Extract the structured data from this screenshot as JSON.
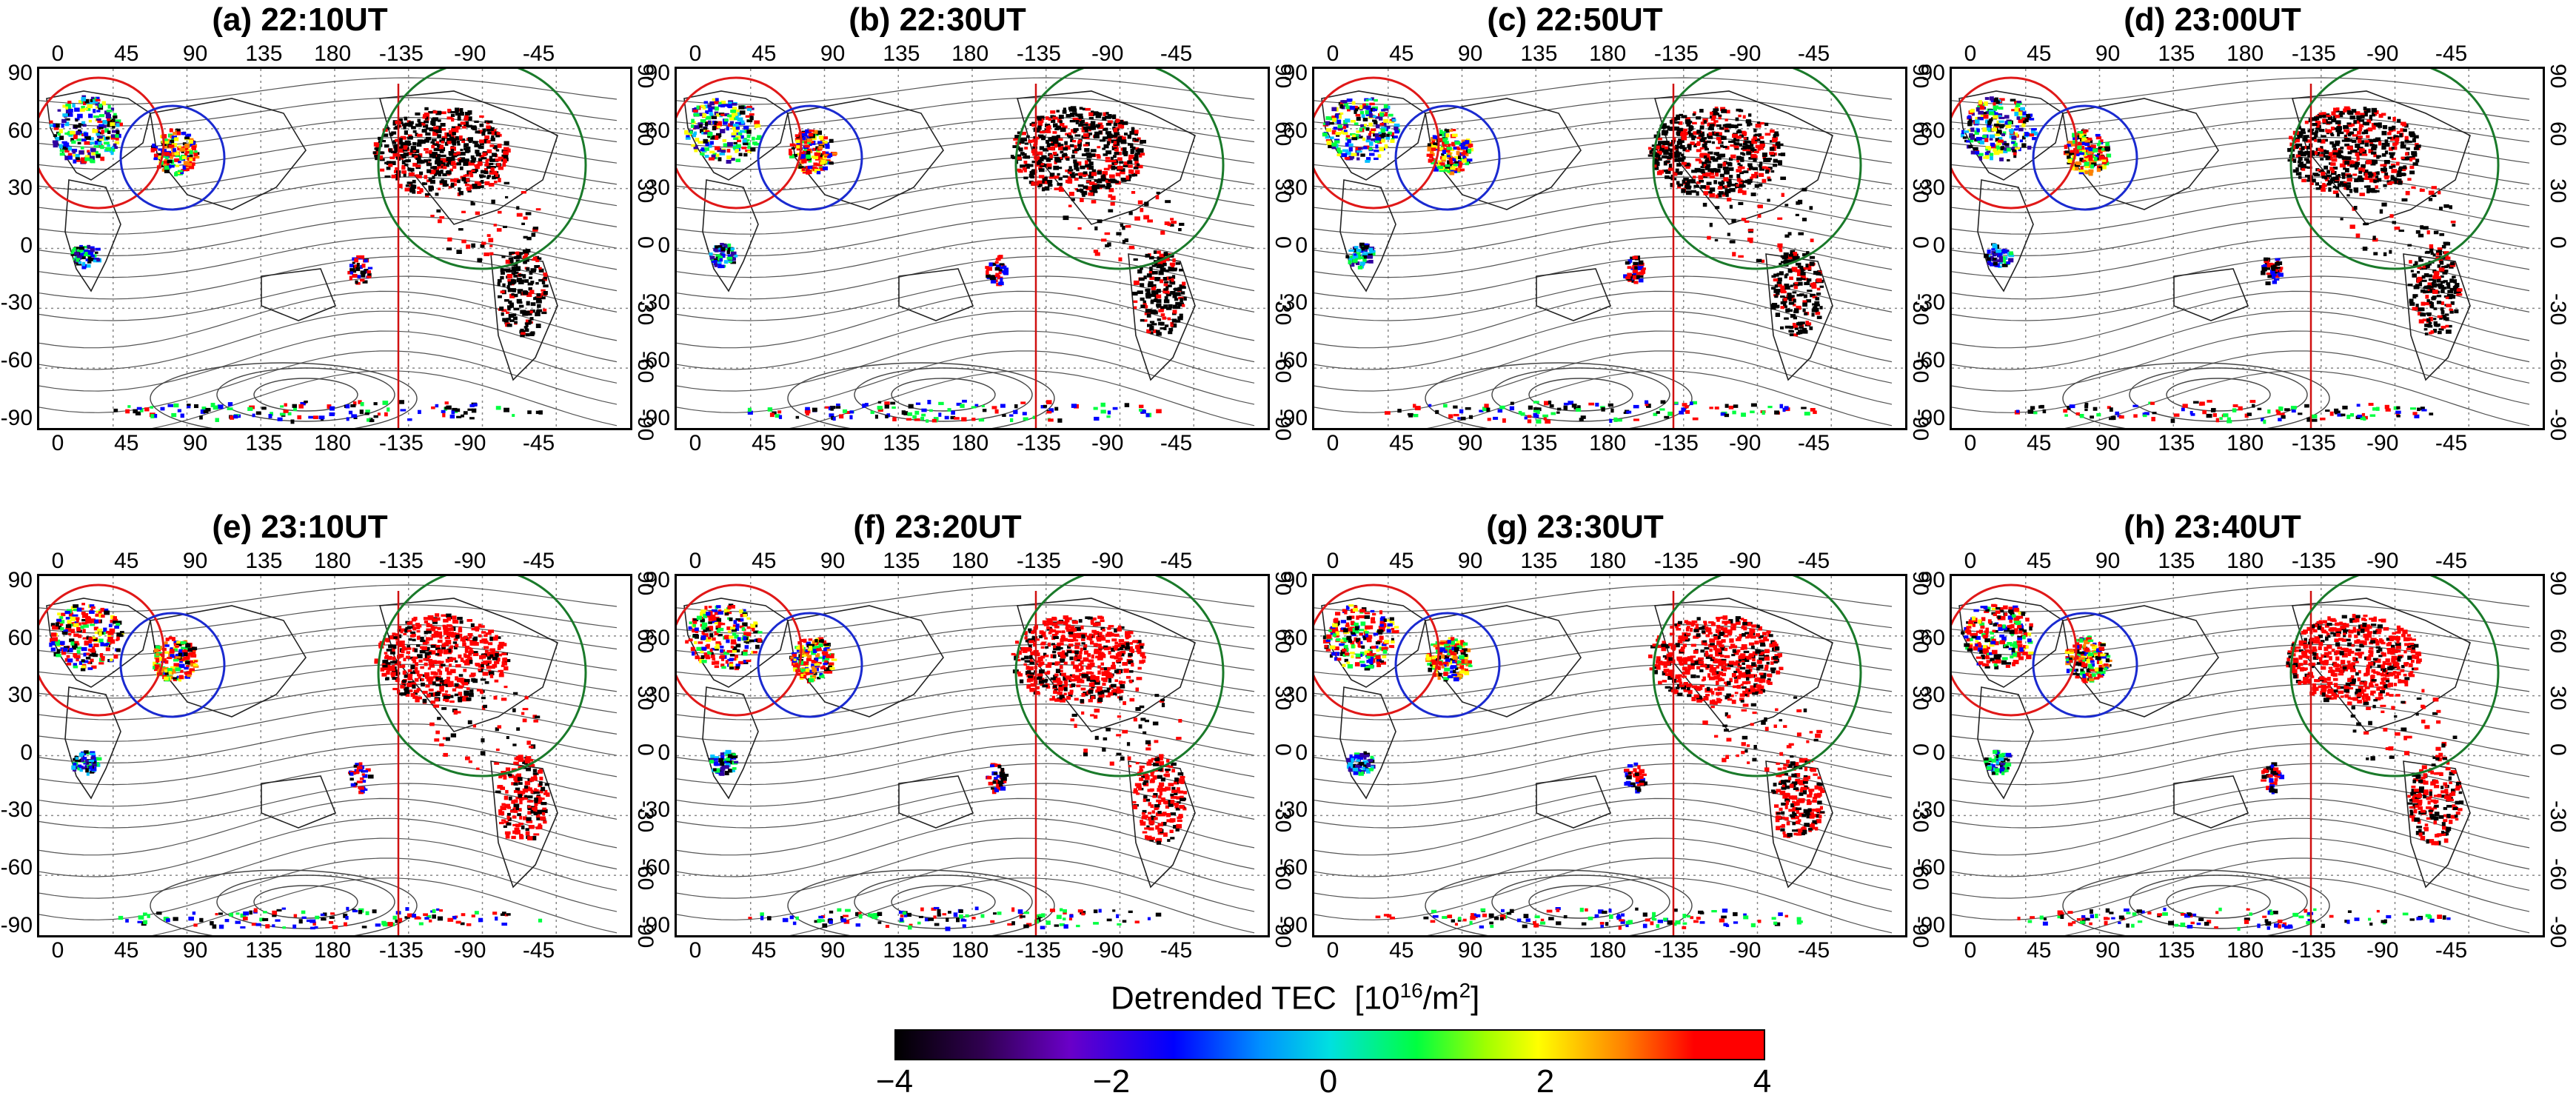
{
  "panels": [
    {
      "title": "(a) 22:10UT"
    },
    {
      "title": "(b) 22:30UT"
    },
    {
      "title": "(c) 22:50UT"
    },
    {
      "title": "(d) 23:00UT"
    },
    {
      "title": "(e) 23:10UT"
    },
    {
      "title": "(f) 23:20UT"
    },
    {
      "title": "(g) 23:30UT"
    },
    {
      "title": "(h) 23:40UT"
    }
  ],
  "x_ticks": [
    "0",
    "45",
    "90",
    "135",
    "180",
    "-135",
    "-90",
    "-45"
  ],
  "y_ticks": [
    "90",
    "60",
    "30",
    "0",
    "-30",
    "-60",
    "-90"
  ],
  "colorbar": {
    "label": "Detrended TEC",
    "unit": "[10",
    "unit_exp": "16",
    "unit_tail": "/m",
    "unit_exp2": "2",
    "unit_close": "]",
    "ticks": [
      "−4",
      "−2",
      "0",
      "2",
      "4"
    ]
  },
  "colors": {
    "red_circle": "#e01818",
    "blue_circle": "#1a2ad0",
    "green_circle": "#1a7a2a",
    "meridian_line": "#d01010"
  }
}
